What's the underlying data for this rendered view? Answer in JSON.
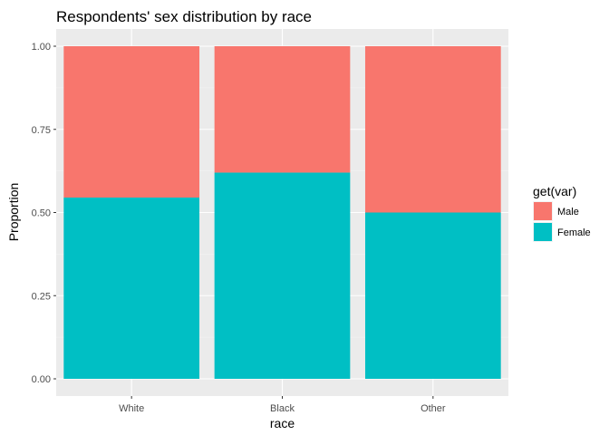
{
  "chart_data": {
    "type": "bar",
    "stacked": true,
    "title": "Respondents' sex distribution by race",
    "xlabel": "race",
    "ylabel": "Proportion",
    "categories": [
      "White",
      "Black",
      "Other"
    ],
    "series": [
      {
        "name": "Female",
        "values": [
          0.545,
          0.62,
          0.5
        ]
      },
      {
        "name": "Male",
        "values": [
          0.455,
          0.38,
          0.5
        ]
      }
    ],
    "ylim": [
      0,
      1
    ],
    "yticks": [
      "0.00",
      "0.25",
      "0.50",
      "0.75",
      "1.00"
    ],
    "legend": {
      "title": "get(var)",
      "position": "right",
      "entries": [
        "Male",
        "Female"
      ]
    },
    "grid": true,
    "colors": {
      "Male": "#F8766D",
      "Female": "#00BFC4",
      "panel": "#EBEBEB",
      "grid_major": "#FFFFFF",
      "grid_minor": "#F4F4F4"
    }
  }
}
